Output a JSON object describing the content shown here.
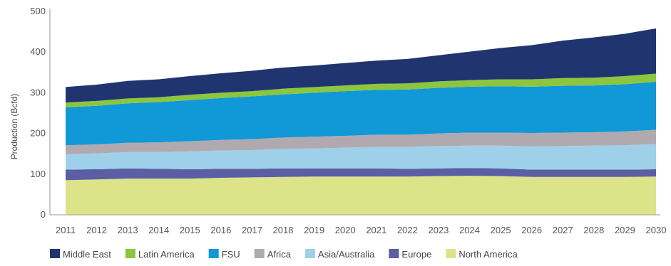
{
  "chart_data": {
    "type": "area",
    "stacked": true,
    "title": "",
    "xlabel": "",
    "ylabel": "Production (Bcfd)",
    "ylim": [
      0,
      500
    ],
    "yticks": [
      "0",
      "100",
      "200",
      "300",
      "400",
      "500"
    ],
    "x": [
      "2011",
      "2012",
      "2013",
      "2014",
      "2015",
      "2016",
      "2017",
      "2018",
      "2019",
      "2020",
      "2021",
      "2022",
      "2023",
      "2024",
      "2025",
      "2026",
      "2027",
      "2028",
      "2029",
      "2030"
    ],
    "grid": false,
    "legend_position": "bottom",
    "series": [
      {
        "name": "North America",
        "color": "#dde388",
        "values": [
          85,
          87,
          89,
          89,
          89,
          91,
          92,
          93,
          94,
          94,
          94,
          94,
          95,
          96,
          95,
          93,
          93,
          93,
          93,
          94
        ]
      },
      {
        "name": "Europe",
        "color": "#5a5fa3",
        "values": [
          26,
          25,
          25,
          24,
          23,
          22,
          21,
          21,
          20,
          20,
          20,
          19,
          19,
          19,
          19,
          18,
          18,
          18,
          18,
          18
        ]
      },
      {
        "name": "Asia/Australia",
        "color": "#9fd0ea",
        "values": [
          38,
          39,
          40,
          41,
          44,
          45,
          46,
          48,
          49,
          51,
          53,
          54,
          55,
          55,
          56,
          57,
          58,
          59,
          60,
          62
        ]
      },
      {
        "name": "Africa",
        "color": "#b0aab0",
        "values": [
          22,
          22,
          23,
          24,
          25,
          26,
          27,
          28,
          29,
          29,
          30,
          30,
          31,
          32,
          32,
          33,
          33,
          33,
          34,
          35
        ]
      },
      {
        "name": "FSU",
        "color": "#1198d6",
        "values": [
          93,
          95,
          97,
          99,
          101,
          103,
          105,
          106,
          108,
          110,
          110,
          111,
          112,
          113,
          114,
          114,
          115,
          115,
          116,
          118
        ]
      },
      {
        "name": "Latin America",
        "color": "#8cc63e",
        "values": [
          12,
          12,
          12,
          12,
          13,
          13,
          13,
          14,
          14,
          14,
          15,
          15,
          16,
          16,
          17,
          18,
          19,
          19,
          20,
          20
        ]
      },
      {
        "name": "Middle East",
        "color": "#203570",
        "values": [
          38,
          40,
          43,
          44,
          46,
          48,
          50,
          52,
          53,
          55,
          57,
          60,
          64,
          70,
          77,
          84,
          92,
          99,
          104,
          111
        ]
      }
    ],
    "legend_order": [
      "Middle East",
      "Latin America",
      "FSU",
      "Africa",
      "Asia/Australia",
      "Europe",
      "North America"
    ]
  }
}
